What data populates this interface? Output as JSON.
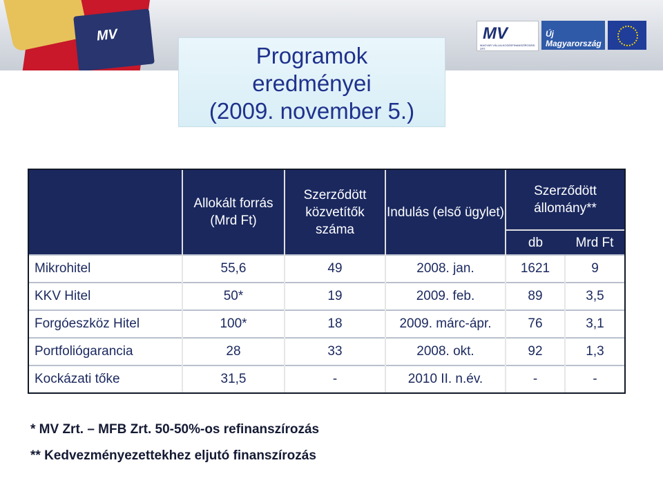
{
  "title": {
    "line1": "Programok",
    "line2": "eredményei",
    "line3": "(2009. november 5.)"
  },
  "logos": {
    "cube_mark": "MV",
    "mvzrt_mark": "MV",
    "mvzrt_text": "MAGYAR VÁLLALKOZÁSFINANSZÍROZÁSI ZRT.",
    "uj_text": "Új Magyarország"
  },
  "table": {
    "headers": {
      "col1": "Allokált forrás (Mrd Ft)",
      "col2": "Szerződött közvetítők száma",
      "col3": "Indulás (első ügylet)",
      "col4": "Szerződött állomány**",
      "sub_db": "db",
      "sub_mrd": "Mrd Ft"
    },
    "rows": [
      {
        "name": "Mikrohitel",
        "forras": "55,6",
        "kozvetitok": "49",
        "indulas": "2008. jan.",
        "db": "1621",
        "mrd": "9"
      },
      {
        "name": "KKV Hitel",
        "forras": "50*",
        "kozvetitok": "19",
        "indulas": "2009. feb.",
        "db": "89",
        "mrd": "3,5"
      },
      {
        "name": "Forgóeszköz Hitel",
        "forras": "100*",
        "kozvetitok": "18",
        "indulas": "2009. márc-ápr.",
        "db": "76",
        "mrd": "3,1"
      },
      {
        "name": "Portfoliógarancia",
        "forras": "28",
        "kozvetitok": "33",
        "indulas": "2008. okt.",
        "db": "92",
        "mrd": "1,3"
      },
      {
        "name": "Kockázati tőke",
        "forras": "31,5",
        "kozvetitok": "-",
        "indulas": "2010 II. n.év.",
        "db": "-",
        "mrd": "-"
      }
    ]
  },
  "notes": {
    "note1": "* MV Zrt. – MFB Zrt. 50-50%-os refinanszírozás",
    "note2": "** Kedvezményezettekhez eljutó finanszírozás"
  }
}
